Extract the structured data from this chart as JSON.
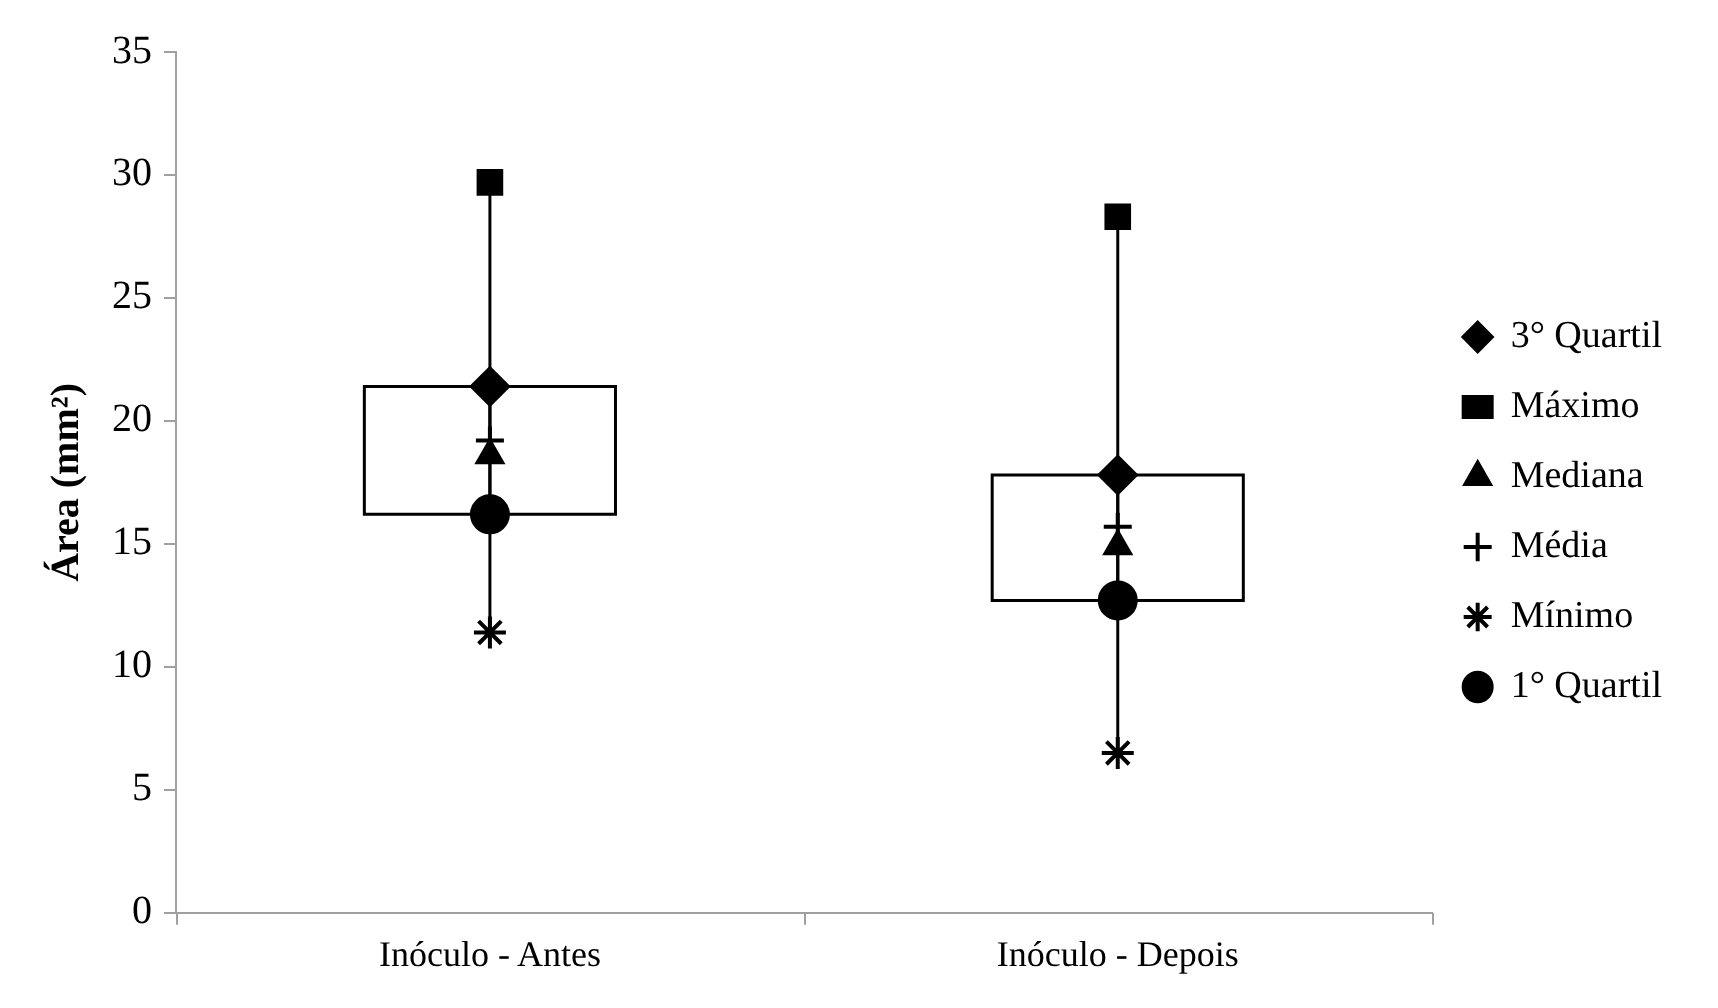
{
  "chart_data": {
    "type": "scatter",
    "ylabel": "Área (mm²)",
    "categories": [
      "Inóculo - Antes",
      "Inóculo - Depois"
    ],
    "series": [
      {
        "name": "3° Quartil",
        "marker": "diamond",
        "color": "#000000",
        "x": [
          "Inóculo - Antes",
          "Inóculo - Depois"
        ],
        "values": [
          21.4,
          17.8
        ]
      },
      {
        "name": "Máximo",
        "marker": "square",
        "color": "#000000",
        "x": [
          "Inóculo - Antes",
          "Inóculo - Depois"
        ],
        "values": [
          29.7,
          28.3
        ]
      },
      {
        "name": "Mediana",
        "marker": "triangle",
        "color": "#000000",
        "x": [
          "Inóculo - Antes",
          "Inóculo - Depois"
        ],
        "values": [
          18.6,
          14.9
        ]
      },
      {
        "name": "Média",
        "marker": "cross",
        "color": "#000000",
        "x": [
          "Inóculo - Antes",
          "Inóculo - Depois"
        ],
        "values": [
          19.2,
          15.7
        ]
      },
      {
        "name": "Mínimo",
        "color": "#000000",
        "x": [
          "Inóculo - Antes",
          "Inóculo - Depois"
        ],
        "values": [
          11.4,
          6.5
        ]
      },
      {
        "name": "1° Quartil",
        "marker": "circle",
        "color": "#000000",
        "x": [
          "Inóculo - Antes",
          "Inóculo - Depois"
        ],
        "values": [
          16.2,
          12.7
        ]
      }
    ],
    "ylim": [
      0,
      35
    ],
    "yticks": [
      0,
      5,
      10,
      15,
      20,
      25,
      30,
      35
    ],
    "legend": "right"
  }
}
